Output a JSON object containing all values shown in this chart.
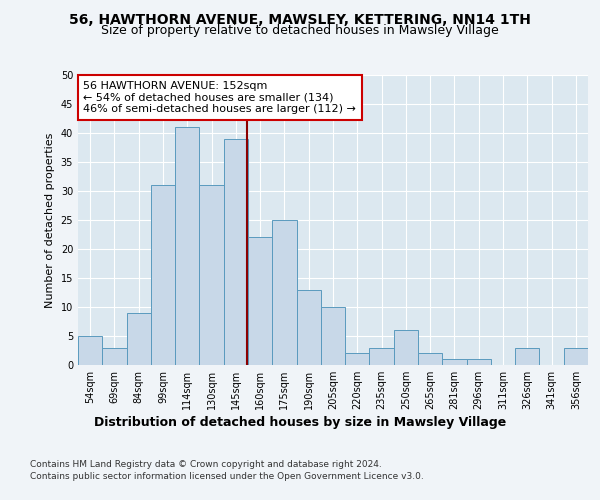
{
  "title": "56, HAWTHORN AVENUE, MAWSLEY, KETTERING, NN14 1TH",
  "subtitle": "Size of property relative to detached houses in Mawsley Village",
  "xlabel": "Distribution of detached houses by size in Mawsley Village",
  "ylabel": "Number of detached properties",
  "categories": [
    "54sqm",
    "69sqm",
    "84sqm",
    "99sqm",
    "114sqm",
    "130sqm",
    "145sqm",
    "160sqm",
    "175sqm",
    "190sqm",
    "205sqm",
    "220sqm",
    "235sqm",
    "250sqm",
    "265sqm",
    "281sqm",
    "296sqm",
    "311sqm",
    "326sqm",
    "341sqm",
    "356sqm"
  ],
  "values": [
    5,
    3,
    9,
    31,
    41,
    31,
    39,
    22,
    25,
    13,
    10,
    2,
    3,
    6,
    2,
    1,
    1,
    0,
    3,
    0,
    3
  ],
  "bar_color": "#c8d8e8",
  "bar_edge_color": "#5a9abe",
  "vline_color": "#8b0000",
  "annotation_text": "56 HAWTHORN AVENUE: 152sqm\n← 54% of detached houses are smaller (134)\n46% of semi-detached houses are larger (112) →",
  "annotation_box_color": "#ffffff",
  "annotation_box_edge": "#cc0000",
  "ylim": [
    0,
    50
  ],
  "yticks": [
    0,
    5,
    10,
    15,
    20,
    25,
    30,
    35,
    40,
    45,
    50
  ],
  "fig_bg_color": "#f0f4f8",
  "plot_bg_color": "#dce8f0",
  "footer1": "Contains HM Land Registry data © Crown copyright and database right 2024.",
  "footer2": "Contains public sector information licensed under the Open Government Licence v3.0.",
  "title_fontsize": 10,
  "subtitle_fontsize": 9,
  "xlabel_fontsize": 9,
  "ylabel_fontsize": 8,
  "tick_fontsize": 7,
  "annotation_fontsize": 8,
  "footer_fontsize": 6.5
}
